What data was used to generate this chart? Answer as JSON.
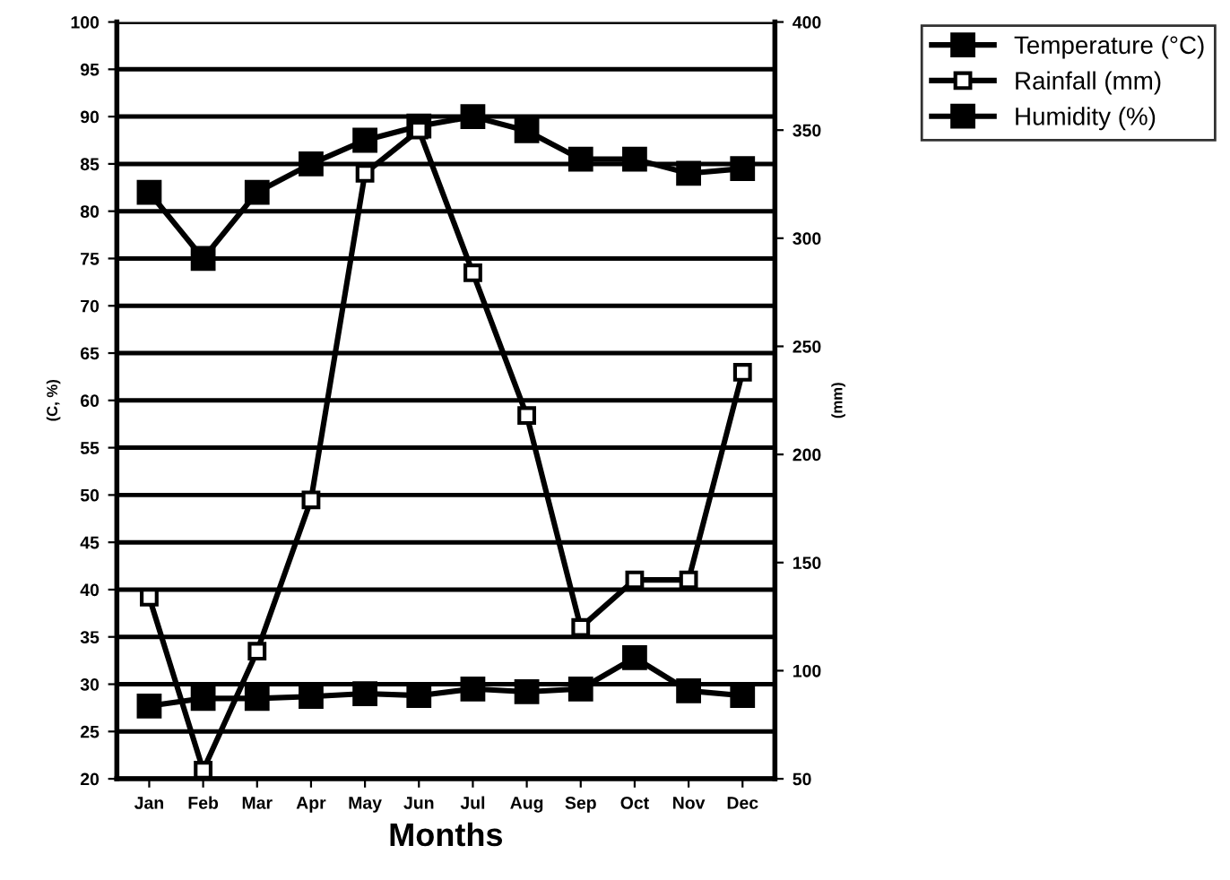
{
  "chart_data": {
    "type": "line",
    "xlabel": "Months",
    "ylabel": "(C, %)",
    "y2label": "(mm)",
    "categories": [
      "Jan",
      "Feb",
      "Mar",
      "Apr",
      "May",
      "Jun",
      "Jul",
      "Aug",
      "Sep",
      "Oct",
      "Nov",
      "Dec"
    ],
    "series": [
      {
        "name": "Temperature (°C)",
        "color": "#000000",
        "marker": "square",
        "values": [
          27.7,
          28.5,
          28.5,
          28.7,
          29,
          28.8,
          29.5,
          29.2,
          29.5,
          32.8,
          29.3,
          28.8
        ]
      },
      {
        "name": "Rainfall (mm)",
        "color": "#ffffff",
        "marker": "square",
        "axis": "y2",
        "values": [
          134,
          54,
          109,
          179,
          330,
          350,
          284,
          218,
          120,
          142,
          142,
          238
        ]
      },
      {
        "name": "Humidity (%)",
        "color": "#000000",
        "marker": "square",
        "values": [
          82,
          75,
          82,
          85,
          87.5,
          89,
          90,
          88.5,
          85.5,
          85.5,
          84,
          84.5
        ]
      }
    ],
    "ylim": [
      20,
      100
    ],
    "yticks": [
      20,
      25,
      30,
      35,
      40,
      45,
      50,
      55,
      60,
      65,
      70,
      75,
      80,
      85,
      90,
      95,
      100
    ],
    "y2lim": [
      50,
      400
    ],
    "y2ticks": [
      50,
      100,
      150,
      200,
      250,
      300,
      350,
      400
    ],
    "grid": "y",
    "legend": "top right",
    "line_style": "solid"
  }
}
